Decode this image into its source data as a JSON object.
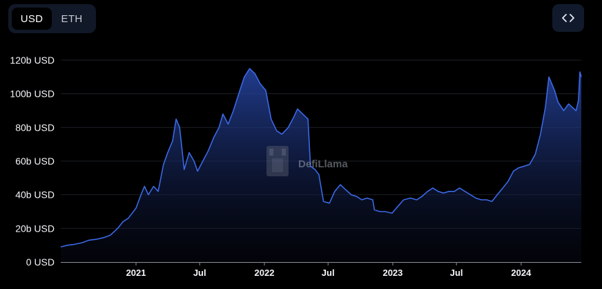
{
  "toggle": {
    "options": [
      "USD",
      "ETH"
    ],
    "selected": "USD"
  },
  "embed_icon": "code-brackets-icon",
  "watermark": {
    "text": "DefiLlama",
    "icon": "llama-logo-icon"
  },
  "colors": {
    "line": "#3b69e6",
    "area_top": "#2747a8",
    "background": "#000000",
    "grid": "#1c1f26"
  },
  "chart_data": {
    "type": "area",
    "title": "",
    "xlabel": "",
    "ylabel": "",
    "ylim": [
      0,
      120
    ],
    "y_ticks": [
      {
        "v": 0,
        "label": "0 USD"
      },
      {
        "v": 20,
        "label": "20b USD"
      },
      {
        "v": 40,
        "label": "40b USD"
      },
      {
        "v": 60,
        "label": "60b USD"
      },
      {
        "v": 80,
        "label": "80b USD"
      },
      {
        "v": 100,
        "label": "100b USD"
      },
      {
        "v": 120,
        "label": "120b USD"
      }
    ],
    "x_ticks": [
      {
        "date": "2021-01-01",
        "label": "2021"
      },
      {
        "date": "2021-07-01",
        "label": "Jul"
      },
      {
        "date": "2022-01-01",
        "label": "2022"
      },
      {
        "date": "2022-07-01",
        "label": "Jul"
      },
      {
        "date": "2023-01-01",
        "label": "2023"
      },
      {
        "date": "2023-07-01",
        "label": "Jul"
      },
      {
        "date": "2024-01-01",
        "label": "2024"
      }
    ],
    "grid": true,
    "series": [
      {
        "name": "",
        "unit": "b USD",
        "points": [
          [
            "2020-06-01",
            9.0
          ],
          [
            "2020-06-20",
            10.0
          ],
          [
            "2020-07-10",
            10.5
          ],
          [
            "2020-08-01",
            11.5
          ],
          [
            "2020-08-20",
            13.0
          ],
          [
            "2020-09-10",
            13.5
          ],
          [
            "2020-10-01",
            14.5
          ],
          [
            "2020-10-20",
            16.0
          ],
          [
            "2020-11-10",
            20.0
          ],
          [
            "2020-11-25",
            24.0
          ],
          [
            "2020-12-10",
            26.0
          ],
          [
            "2021-01-01",
            32.0
          ],
          [
            "2021-01-15",
            40.0
          ],
          [
            "2021-01-25",
            45.0
          ],
          [
            "2021-02-05",
            40.0
          ],
          [
            "2021-02-20",
            45.0
          ],
          [
            "2021-03-05",
            42.0
          ],
          [
            "2021-03-20",
            58.0
          ],
          [
            "2021-04-01",
            65.0
          ],
          [
            "2021-04-15",
            72.0
          ],
          [
            "2021-04-25",
            85.0
          ],
          [
            "2021-05-05",
            80.0
          ],
          [
            "2021-05-18",
            55.0
          ],
          [
            "2021-06-01",
            65.0
          ],
          [
            "2021-06-15",
            60.0
          ],
          [
            "2021-06-25",
            54.0
          ],
          [
            "2021-07-10",
            60.0
          ],
          [
            "2021-07-25",
            66.0
          ],
          [
            "2021-08-10",
            74.0
          ],
          [
            "2021-08-25",
            80.0
          ],
          [
            "2021-09-05",
            88.0
          ],
          [
            "2021-09-20",
            82.0
          ],
          [
            "2021-10-05",
            90.0
          ],
          [
            "2021-10-20",
            100.0
          ],
          [
            "2021-11-05",
            110.0
          ],
          [
            "2021-11-20",
            115.0
          ],
          [
            "2021-12-05",
            112.0
          ],
          [
            "2021-12-20",
            106.0
          ],
          [
            "2022-01-05",
            102.0
          ],
          [
            "2022-01-20",
            85.0
          ],
          [
            "2022-02-05",
            78.0
          ],
          [
            "2022-02-20",
            76.0
          ],
          [
            "2022-03-10",
            80.0
          ],
          [
            "2022-03-25",
            86.0
          ],
          [
            "2022-04-05",
            91.0
          ],
          [
            "2022-04-20",
            88.0
          ],
          [
            "2022-05-05",
            85.0
          ],
          [
            "2022-05-12",
            57.0
          ],
          [
            "2022-05-25",
            55.0
          ],
          [
            "2022-06-05",
            52.0
          ],
          [
            "2022-06-18",
            36.0
          ],
          [
            "2022-07-05",
            35.0
          ],
          [
            "2022-07-20",
            42.0
          ],
          [
            "2022-08-05",
            46.0
          ],
          [
            "2022-08-20",
            43.0
          ],
          [
            "2022-09-05",
            40.0
          ],
          [
            "2022-09-20",
            39.0
          ],
          [
            "2022-10-05",
            37.0
          ],
          [
            "2022-10-20",
            38.0
          ],
          [
            "2022-11-05",
            37.0
          ],
          [
            "2022-11-10",
            31.0
          ],
          [
            "2022-11-25",
            30.0
          ],
          [
            "2022-12-10",
            30.0
          ],
          [
            "2022-12-30",
            29.0
          ],
          [
            "2023-01-15",
            33.0
          ],
          [
            "2023-02-01",
            37.0
          ],
          [
            "2023-02-20",
            38.0
          ],
          [
            "2023-03-10",
            37.0
          ],
          [
            "2023-03-25",
            39.0
          ],
          [
            "2023-04-10",
            42.0
          ],
          [
            "2023-04-25",
            44.0
          ],
          [
            "2023-05-10",
            42.0
          ],
          [
            "2023-05-25",
            41.0
          ],
          [
            "2023-06-10",
            42.0
          ],
          [
            "2023-06-25",
            42.0
          ],
          [
            "2023-07-10",
            44.0
          ],
          [
            "2023-07-25",
            42.0
          ],
          [
            "2023-08-10",
            40.0
          ],
          [
            "2023-08-25",
            38.0
          ],
          [
            "2023-09-10",
            37.0
          ],
          [
            "2023-09-25",
            37.0
          ],
          [
            "2023-10-10",
            36.0
          ],
          [
            "2023-10-25",
            40.0
          ],
          [
            "2023-11-10",
            44.0
          ],
          [
            "2023-11-25",
            48.0
          ],
          [
            "2023-12-10",
            54.0
          ],
          [
            "2023-12-25",
            56.0
          ],
          [
            "2024-01-10",
            57.0
          ],
          [
            "2024-01-25",
            58.0
          ],
          [
            "2024-02-10",
            64.0
          ],
          [
            "2024-02-25",
            76.0
          ],
          [
            "2024-03-10",
            92.0
          ],
          [
            "2024-03-20",
            110.0
          ],
          [
            "2024-04-05",
            102.0
          ],
          [
            "2024-04-15",
            95.0
          ],
          [
            "2024-05-01",
            90.0
          ],
          [
            "2024-05-15",
            94.0
          ],
          [
            "2024-05-25",
            92.0
          ],
          [
            "2024-06-05",
            90.0
          ],
          [
            "2024-06-12",
            96.0
          ],
          [
            "2024-06-16",
            113.0
          ],
          [
            "2024-06-20",
            110.0
          ]
        ]
      }
    ]
  }
}
